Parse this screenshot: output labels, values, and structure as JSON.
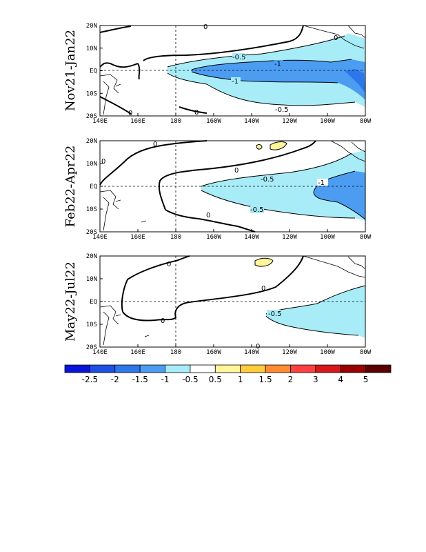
{
  "figure": {
    "panels": [
      {
        "title": "Nov21-Jan22",
        "contour_labels": {
          "zero": "0",
          "neg_half": "-0.5",
          "neg_one": "-1"
        }
      },
      {
        "title": "Feb22-Apr22",
        "contour_labels": {
          "zero": "0",
          "neg_half": "-0.5",
          "neg_one": "-1"
        }
      },
      {
        "title": "May22-Jul22",
        "contour_labels": {
          "zero": "0",
          "neg_half": "-0.5"
        }
      }
    ],
    "lon_ticks": [
      "140E",
      "160E",
      "180",
      "160W",
      "140W",
      "120W",
      "100W",
      "80W"
    ],
    "lat_ticks": [
      "20N",
      "10N",
      "EQ",
      "10S",
      "20S"
    ],
    "colorbar": {
      "labels": [
        "-2.5",
        "-2",
        "-1.5",
        "-1",
        "-0.5",
        "0.5",
        "1",
        "1.5",
        "2",
        "3",
        "4",
        "5"
      ],
      "colors": [
        "#0a14d8",
        "#1e50e6",
        "#2c78ea",
        "#4c9cf2",
        "#a8ecf8",
        "#ffffff",
        "#fff59a",
        "#ffcc3c",
        "#ff8c30",
        "#ff4040",
        "#d81818",
        "#9a0000",
        "#5a0000"
      ]
    },
    "shading_colors": {
      "neg_half": "#a8ecf8",
      "neg_one": "#4c9cf2",
      "neg_one_five": "#2c78ea",
      "pos_half": "#fff59a"
    }
  }
}
